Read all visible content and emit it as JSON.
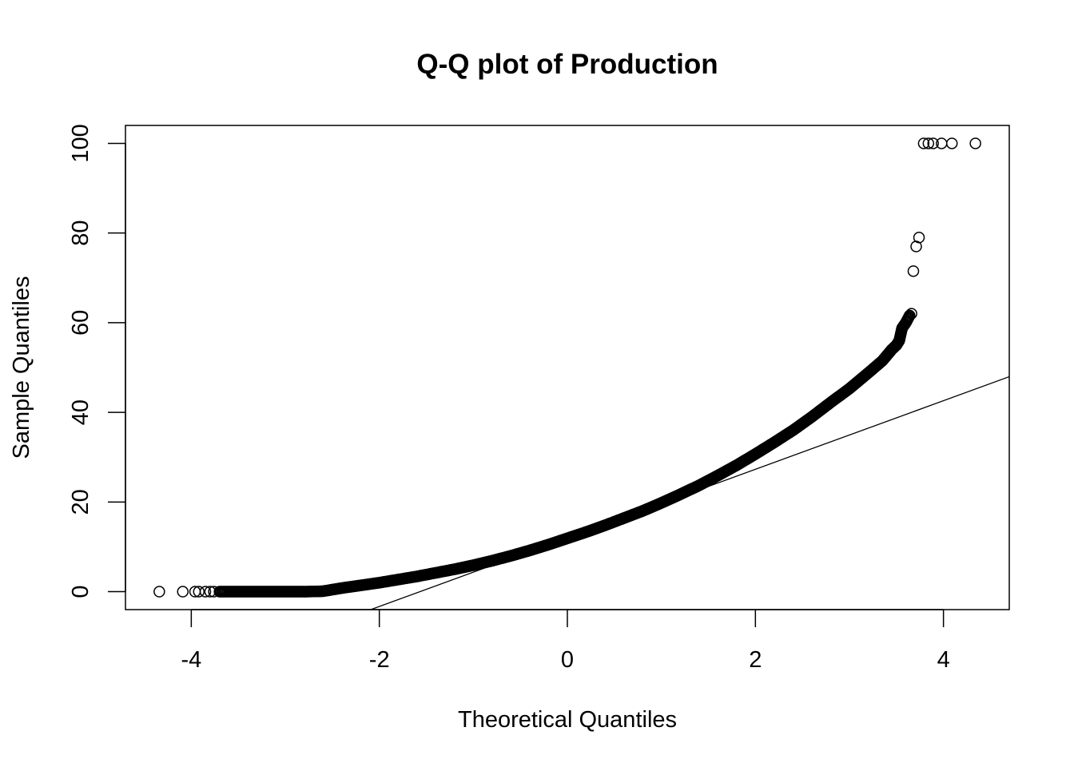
{
  "chart_data": {
    "type": "scatter",
    "title": "Q-Q plot of Production",
    "xlabel": "Theoretical Quantiles",
    "ylabel": "Sample Quantiles",
    "xlim": [
      -4.7,
      4.7
    ],
    "ylim": [
      -4,
      104
    ],
    "xticks": [
      -4,
      -2,
      0,
      2,
      4
    ],
    "xtick_labels": [
      "-4",
      "-2",
      "0",
      "2",
      "4"
    ],
    "yticks": [
      0,
      20,
      40,
      60,
      80,
      100
    ],
    "ytick_labels": [
      "0",
      "20",
      "40",
      "60",
      "80",
      "100"
    ],
    "grid": false,
    "reference_line": {
      "intercept": 12.0,
      "slope": 7.65
    },
    "series": [
      {
        "points": [
          [
            -4.34,
            0
          ],
          [
            -4.09,
            0
          ],
          [
            -3.96,
            0
          ],
          [
            -3.92,
            0
          ],
          [
            -3.85,
            0
          ],
          [
            -3.8,
            0
          ],
          [
            -3.76,
            0
          ],
          [
            -3.7,
            0
          ],
          [
            -3.6,
            0
          ],
          [
            -3.4,
            0
          ],
          [
            -3.2,
            0
          ],
          [
            -3.0,
            0
          ],
          [
            -2.8,
            0
          ],
          [
            -2.6,
            0.1
          ],
          [
            -2.4,
            0.8
          ],
          [
            -2.2,
            1.4
          ],
          [
            -2.0,
            2.0
          ],
          [
            -1.8,
            2.7
          ],
          [
            -1.6,
            3.4
          ],
          [
            -1.4,
            4.2
          ],
          [
            -1.2,
            5.0
          ],
          [
            -1.0,
            5.9
          ],
          [
            -0.8,
            6.9
          ],
          [
            -0.6,
            8.0
          ],
          [
            -0.4,
            9.2
          ],
          [
            -0.2,
            10.5
          ],
          [
            0.0,
            11.9
          ],
          [
            0.2,
            13.3
          ],
          [
            0.4,
            14.8
          ],
          [
            0.6,
            16.4
          ],
          [
            0.8,
            18.0
          ],
          [
            1.0,
            19.8
          ],
          [
            1.2,
            21.7
          ],
          [
            1.4,
            23.7
          ],
          [
            1.6,
            25.9
          ],
          [
            1.8,
            28.2
          ],
          [
            2.0,
            30.7
          ],
          [
            2.2,
            33.3
          ],
          [
            2.4,
            36.0
          ],
          [
            2.6,
            39.0
          ],
          [
            2.8,
            42.2
          ],
          [
            3.0,
            45.3
          ],
          [
            3.2,
            48.8
          ],
          [
            3.35,
            51.5
          ],
          [
            3.45,
            54.0
          ],
          [
            3.5,
            55.0
          ],
          [
            3.53,
            56.0
          ],
          [
            3.56,
            58.8
          ],
          [
            3.6,
            60.0
          ],
          [
            3.64,
            61.6
          ],
          [
            3.66,
            62.0
          ],
          [
            3.68,
            71.5
          ],
          [
            3.71,
            77.0
          ],
          [
            3.74,
            79.0
          ],
          [
            3.79,
            100
          ],
          [
            3.84,
            100
          ],
          [
            3.89,
            100
          ],
          [
            3.98,
            100
          ],
          [
            4.09,
            100
          ],
          [
            4.34,
            100
          ]
        ]
      }
    ]
  }
}
